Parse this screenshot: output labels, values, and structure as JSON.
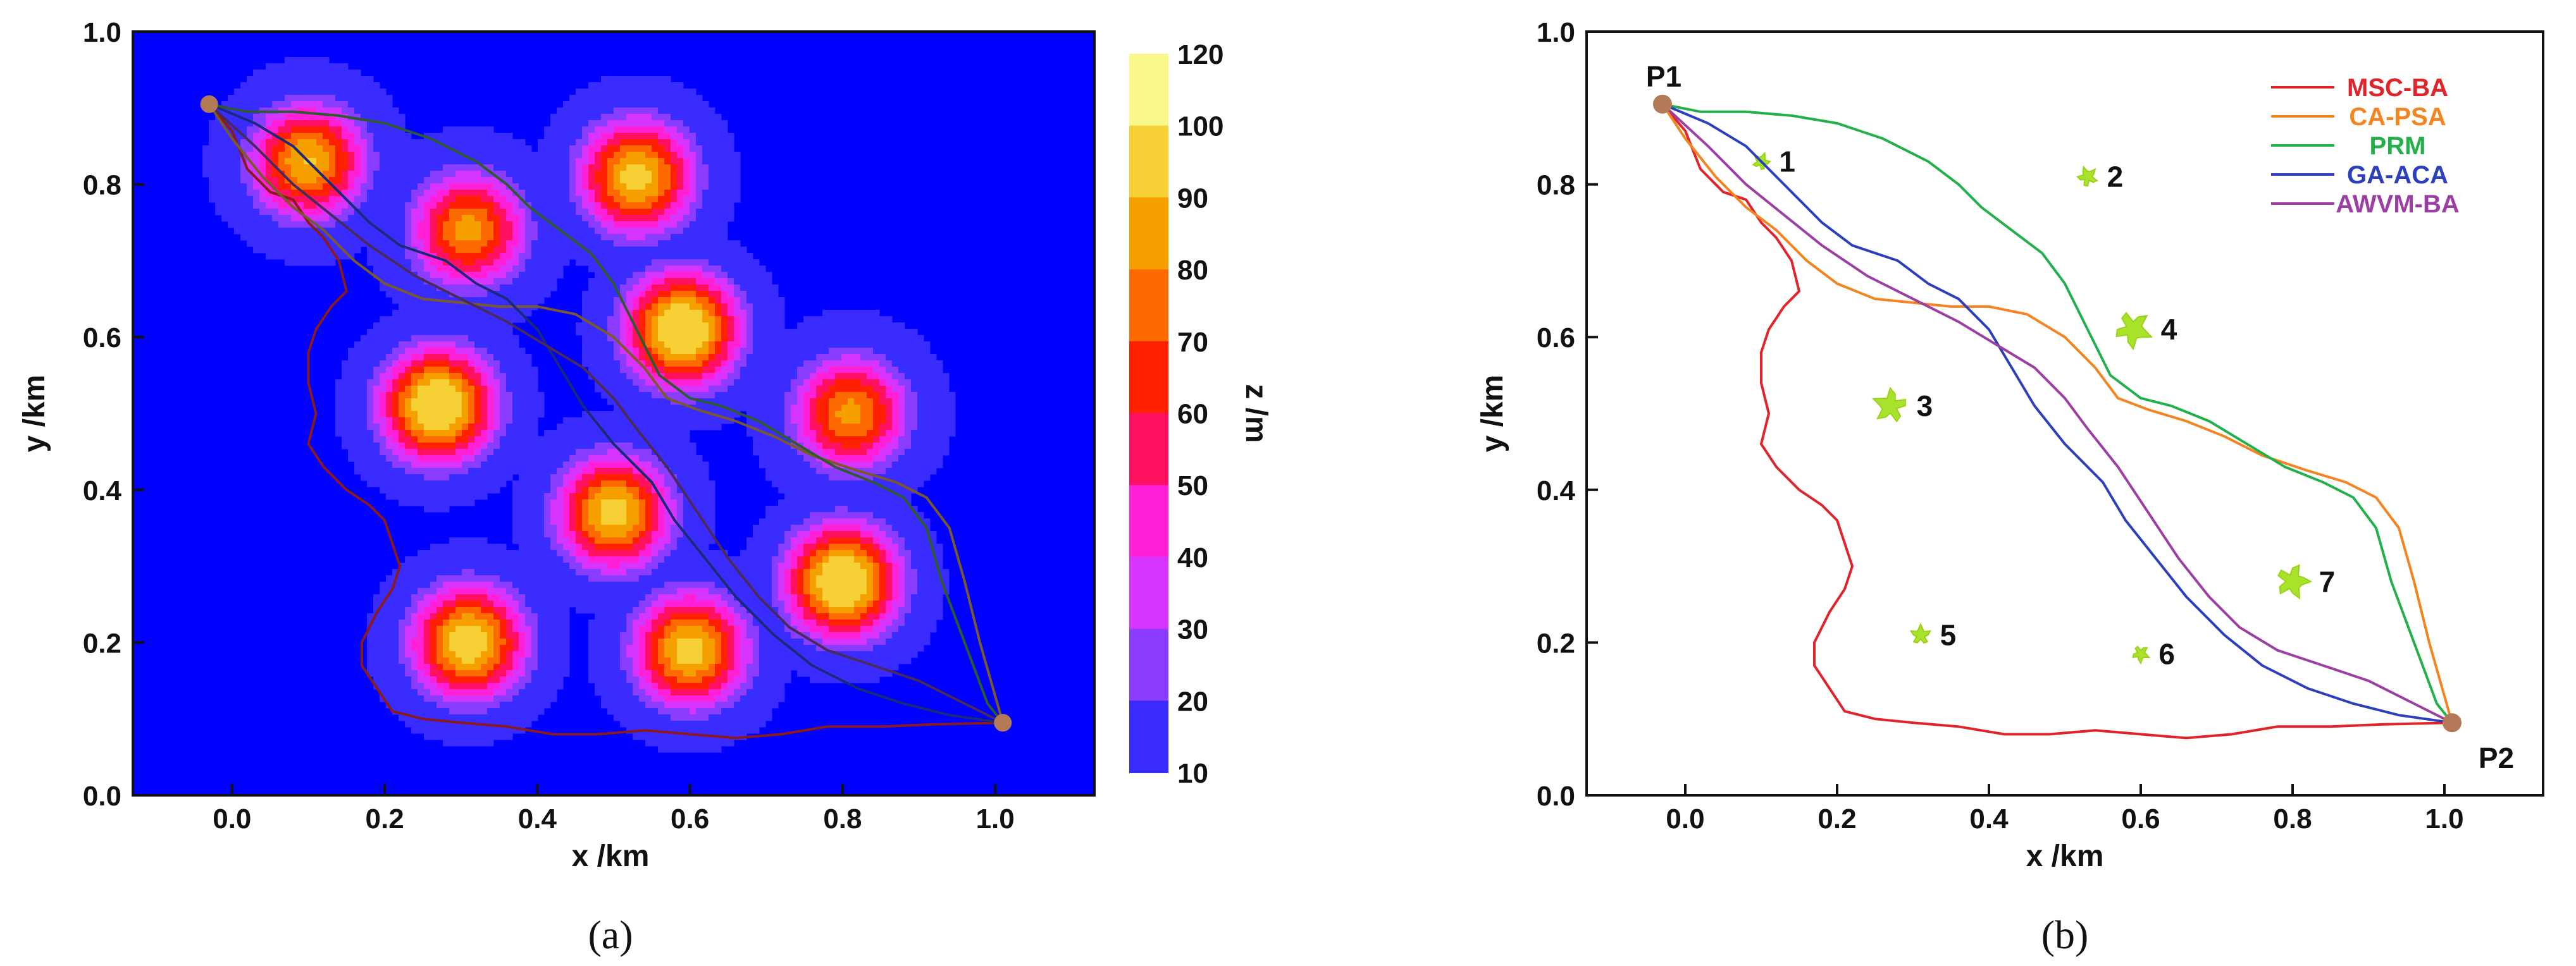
{
  "figure": {
    "caption_a": "(a)",
    "caption_b": "(b)"
  },
  "chart_data": [
    {
      "type": "heatmap",
      "panel": "a",
      "xlabel": "x /km",
      "ylabel": "y /km",
      "xlim": [
        -0.13,
        1.13
      ],
      "ylim": [
        0.0,
        1.0
      ],
      "x_ticks": [
        "0.0",
        "0.2",
        "0.4",
        "0.6",
        "0.8",
        "1.0"
      ],
      "y_ticks": [
        "0.0",
        "0.2",
        "0.4",
        "0.6",
        "0.8",
        "1.0"
      ],
      "colorbar": {
        "label": "z /m",
        "tick_labels": [
          "120",
          "100",
          "90",
          "80",
          "70",
          "60",
          "50",
          "40",
          "30",
          "20",
          "10"
        ],
        "colors": [
          "#f8f88a",
          "#f6d035",
          "#f6a000",
          "#ff6a00",
          "#ff2000",
          "#ff1060",
          "#ff20d8",
          "#d834ff",
          "#8a3cff",
          "#3a2cff",
          "#0000ff"
        ]
      },
      "peaks": [
        {
          "x": 0.1,
          "y": 0.83,
          "h": 95
        },
        {
          "x": 0.31,
          "y": 0.74,
          "h": 88
        },
        {
          "x": 0.53,
          "y": 0.81,
          "h": 100
        },
        {
          "x": 0.27,
          "y": 0.51,
          "h": 112
        },
        {
          "x": 0.59,
          "y": 0.61,
          "h": 112
        },
        {
          "x": 0.81,
          "y": 0.5,
          "h": 88
        },
        {
          "x": 0.5,
          "y": 0.37,
          "h": 100
        },
        {
          "x": 0.31,
          "y": 0.2,
          "h": 104
        },
        {
          "x": 0.6,
          "y": 0.19,
          "h": 100
        },
        {
          "x": 0.8,
          "y": 0.28,
          "h": 112
        }
      ],
      "endpoints": [
        {
          "x": -0.03,
          "y": 0.905
        },
        {
          "x": 1.01,
          "y": 0.095
        }
      ]
    },
    {
      "type": "line",
      "panel": "b",
      "xlabel": "x /km",
      "ylabel": "y /km",
      "xlim": [
        -0.13,
        1.13
      ],
      "ylim": [
        0.0,
        1.0
      ],
      "x_ticks": [
        "0.0",
        "0.2",
        "0.4",
        "0.6",
        "0.8",
        "1.0"
      ],
      "y_ticks": [
        "0.0",
        "0.2",
        "0.4",
        "0.6",
        "0.8",
        "1.0"
      ],
      "start_label": "P1",
      "end_label": "P2",
      "start": {
        "x": -0.03,
        "y": 0.905
      },
      "end": {
        "x": 1.01,
        "y": 0.095
      },
      "legend_position": "top-right",
      "series": [
        {
          "name": "MSC-BA",
          "color": "#e0242a",
          "points": [
            [
              -0.03,
              0.905
            ],
            [
              0.0,
              0.87
            ],
            [
              0.02,
              0.82
            ],
            [
              0.05,
              0.79
            ],
            [
              0.08,
              0.78
            ],
            [
              0.1,
              0.75
            ],
            [
              0.12,
              0.73
            ],
            [
              0.14,
              0.7
            ],
            [
              0.15,
              0.66
            ],
            [
              0.13,
              0.64
            ],
            [
              0.11,
              0.61
            ],
            [
              0.1,
              0.58
            ],
            [
              0.1,
              0.54
            ],
            [
              0.11,
              0.5
            ],
            [
              0.1,
              0.46
            ],
            [
              0.12,
              0.43
            ],
            [
              0.15,
              0.4
            ],
            [
              0.18,
              0.38
            ],
            [
              0.2,
              0.36
            ],
            [
              0.21,
              0.33
            ],
            [
              0.22,
              0.3
            ],
            [
              0.21,
              0.27
            ],
            [
              0.19,
              0.24
            ],
            [
              0.17,
              0.2
            ],
            [
              0.17,
              0.17
            ],
            [
              0.19,
              0.14
            ],
            [
              0.21,
              0.11
            ],
            [
              0.25,
              0.1
            ],
            [
              0.3,
              0.095
            ],
            [
              0.36,
              0.09
            ],
            [
              0.42,
              0.08
            ],
            [
              0.48,
              0.08
            ],
            [
              0.54,
              0.085
            ],
            [
              0.6,
              0.08
            ],
            [
              0.66,
              0.075
            ],
            [
              0.72,
              0.08
            ],
            [
              0.78,
              0.09
            ],
            [
              0.85,
              0.09
            ],
            [
              0.92,
              0.093
            ],
            [
              1.01,
              0.095
            ]
          ]
        },
        {
          "name": "CA-PSA",
          "color": "#f5831f",
          "points": [
            [
              -0.03,
              0.905
            ],
            [
              0.0,
              0.86
            ],
            [
              0.04,
              0.81
            ],
            [
              0.08,
              0.77
            ],
            [
              0.12,
              0.74
            ],
            [
              0.16,
              0.7
            ],
            [
              0.2,
              0.67
            ],
            [
              0.25,
              0.65
            ],
            [
              0.3,
              0.645
            ],
            [
              0.35,
              0.64
            ],
            [
              0.4,
              0.64
            ],
            [
              0.45,
              0.63
            ],
            [
              0.5,
              0.6
            ],
            [
              0.54,
              0.56
            ],
            [
              0.57,
              0.52
            ],
            [
              0.61,
              0.505
            ],
            [
              0.66,
              0.49
            ],
            [
              0.71,
              0.47
            ],
            [
              0.76,
              0.445
            ],
            [
              0.82,
              0.425
            ],
            [
              0.87,
              0.41
            ],
            [
              0.91,
              0.39
            ],
            [
              0.94,
              0.35
            ],
            [
              0.96,
              0.28
            ],
            [
              0.98,
              0.2
            ],
            [
              1.0,
              0.13
            ],
            [
              1.01,
              0.095
            ]
          ]
        },
        {
          "name": "PRM",
          "color": "#22b04a",
          "points": [
            [
              -0.03,
              0.905
            ],
            [
              0.02,
              0.895
            ],
            [
              0.08,
              0.895
            ],
            [
              0.14,
              0.89
            ],
            [
              0.2,
              0.88
            ],
            [
              0.26,
              0.86
            ],
            [
              0.32,
              0.83
            ],
            [
              0.36,
              0.8
            ],
            [
              0.39,
              0.77
            ],
            [
              0.43,
              0.74
            ],
            [
              0.47,
              0.71
            ],
            [
              0.5,
              0.67
            ],
            [
              0.53,
              0.61
            ],
            [
              0.56,
              0.55
            ],
            [
              0.6,
              0.52
            ],
            [
              0.64,
              0.51
            ],
            [
              0.69,
              0.49
            ],
            [
              0.74,
              0.46
            ],
            [
              0.79,
              0.43
            ],
            [
              0.84,
              0.41
            ],
            [
              0.88,
              0.39
            ],
            [
              0.91,
              0.35
            ],
            [
              0.93,
              0.28
            ],
            [
              0.96,
              0.2
            ],
            [
              0.99,
              0.12
            ],
            [
              1.01,
              0.095
            ]
          ]
        },
        {
          "name": "GA-ACA",
          "color": "#2b3fbf",
          "points": [
            [
              -0.03,
              0.905
            ],
            [
              0.03,
              0.88
            ],
            [
              0.08,
              0.85
            ],
            [
              0.13,
              0.8
            ],
            [
              0.18,
              0.75
            ],
            [
              0.22,
              0.72
            ],
            [
              0.28,
              0.7
            ],
            [
              0.32,
              0.67
            ],
            [
              0.36,
              0.65
            ],
            [
              0.4,
              0.61
            ],
            [
              0.43,
              0.56
            ],
            [
              0.46,
              0.51
            ],
            [
              0.5,
              0.46
            ],
            [
              0.55,
              0.41
            ],
            [
              0.58,
              0.36
            ],
            [
              0.62,
              0.31
            ],
            [
              0.66,
              0.26
            ],
            [
              0.71,
              0.21
            ],
            [
              0.76,
              0.17
            ],
            [
              0.82,
              0.14
            ],
            [
              0.88,
              0.12
            ],
            [
              0.94,
              0.105
            ],
            [
              1.01,
              0.095
            ]
          ]
        },
        {
          "name": "AWVM-BA",
          "color": "#9b3fa3",
          "points": [
            [
              -0.03,
              0.905
            ],
            [
              0.03,
              0.85
            ],
            [
              0.08,
              0.8
            ],
            [
              0.13,
              0.76
            ],
            [
              0.18,
              0.72
            ],
            [
              0.24,
              0.68
            ],
            [
              0.3,
              0.65
            ],
            [
              0.36,
              0.62
            ],
            [
              0.41,
              0.59
            ],
            [
              0.46,
              0.56
            ],
            [
              0.5,
              0.52
            ],
            [
              0.53,
              0.48
            ],
            [
              0.57,
              0.43
            ],
            [
              0.61,
              0.37
            ],
            [
              0.65,
              0.31
            ],
            [
              0.69,
              0.26
            ],
            [
              0.73,
              0.22
            ],
            [
              0.78,
              0.19
            ],
            [
              0.84,
              0.17
            ],
            [
              0.9,
              0.15
            ],
            [
              0.96,
              0.12
            ],
            [
              1.01,
              0.095
            ]
          ]
        }
      ],
      "obstacles": [
        {
          "label": "1",
          "x": 0.1,
          "y": 0.83,
          "size": 0.6
        },
        {
          "label": "2",
          "x": 0.53,
          "y": 0.81,
          "size": 0.7
        },
        {
          "label": "3",
          "x": 0.27,
          "y": 0.51,
          "size": 1.2
        },
        {
          "label": "4",
          "x": 0.59,
          "y": 0.61,
          "size": 1.3
        },
        {
          "label": "5",
          "x": 0.31,
          "y": 0.21,
          "size": 0.7
        },
        {
          "label": "6",
          "x": 0.6,
          "y": 0.185,
          "size": 0.6
        },
        {
          "label": "7",
          "x": 0.8,
          "y": 0.28,
          "size": 1.2
        }
      ]
    }
  ]
}
